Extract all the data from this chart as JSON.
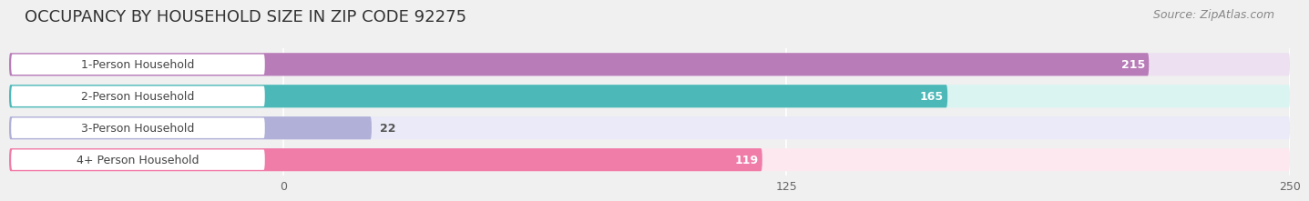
{
  "title": "OCCUPANCY BY HOUSEHOLD SIZE IN ZIP CODE 92275",
  "source": "Source: ZipAtlas.com",
  "categories": [
    "1-Person Household",
    "2-Person Household",
    "3-Person Household",
    "4+ Person Household"
  ],
  "values": [
    215,
    165,
    22,
    119
  ],
  "bar_colors": [
    "#b87cb8",
    "#4db8b8",
    "#b0b0d8",
    "#f07ca8"
  ],
  "bar_bg_colors": [
    "#ede0f0",
    "#daf4f2",
    "#eaeaf8",
    "#fde8ef"
  ],
  "xlim": [
    -68,
    250
  ],
  "data_xlim": [
    0,
    250
  ],
  "xticks": [
    0,
    125,
    250
  ],
  "value_label_color_inside": [
    "#ffffff",
    "#ffffff"
  ],
  "value_label_color_outside": "#555555",
  "outside_threshold": 40,
  "title_fontsize": 13,
  "source_fontsize": 9,
  "label_fontsize": 9,
  "tick_fontsize": 9,
  "background_color": "#f0f0f0",
  "bar_row_bg": "#f8f8f8"
}
